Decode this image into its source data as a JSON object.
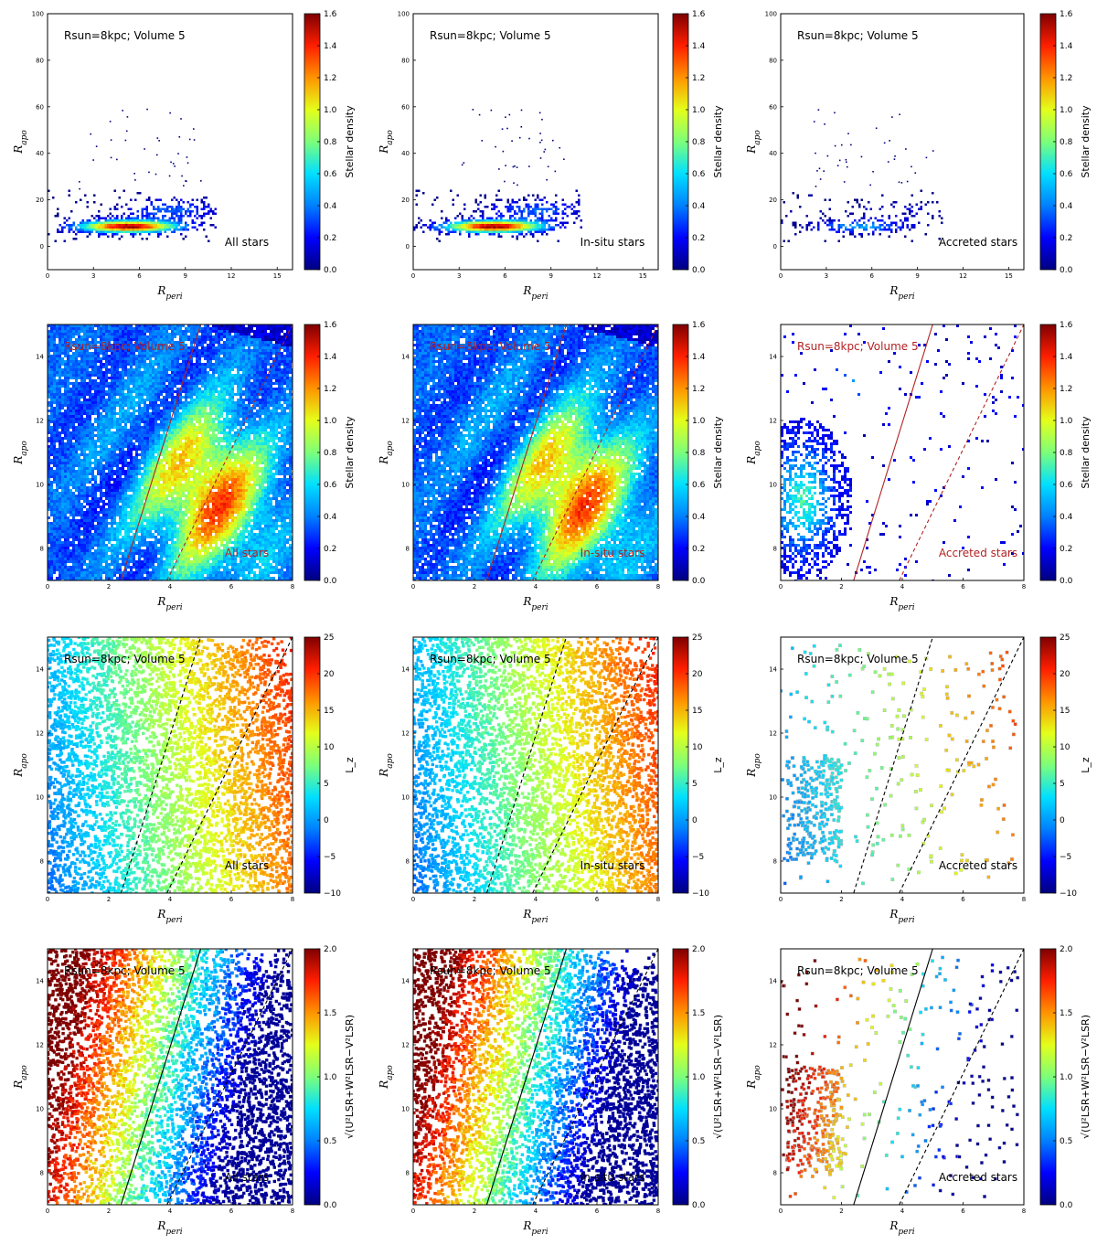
{
  "figure": {
    "columns": [
      "All stars",
      "In-situ stars",
      "Accreted stars"
    ],
    "colormap": [
      "#00007f",
      "#0000ff",
      "#0080ff",
      "#00e0ff",
      "#7dff7a",
      "#e4ff1a",
      "#ff9400",
      "#ff1e00",
      "#7f0000"
    ]
  },
  "chart_data": [
    {
      "type": "heatmap",
      "row": 1,
      "col": 1,
      "title": "Rsun=8kpc; Volume 5",
      "subtitle": "All stars",
      "xlabel": "R_peri",
      "ylabel": "R_apo",
      "xlim": [
        0,
        16
      ],
      "ylim": [
        -10,
        100
      ],
      "xticks": [
        "0",
        "3",
        "6",
        "9",
        "12",
        "15"
      ],
      "yticks": [
        "0",
        "20",
        "40",
        "60",
        "80",
        "100"
      ],
      "colorbar": {
        "label": "Stellar density",
        "range": [
          0,
          1.6
        ],
        "ticks": [
          "0.0",
          "0.2",
          "0.4",
          "0.6",
          "0.8",
          "1.0",
          "1.2",
          "1.4",
          "1.6"
        ]
      },
      "annotation_color": "#000000"
    },
    {
      "type": "heatmap",
      "row": 1,
      "col": 2,
      "title": "Rsun=8kpc; Volume 5",
      "subtitle": "In-situ stars",
      "xlabel": "R_peri",
      "ylabel": "R_apo",
      "xlim": [
        0,
        16
      ],
      "ylim": [
        -10,
        100
      ],
      "xticks": [
        "0",
        "3",
        "6",
        "9",
        "12",
        "15"
      ],
      "yticks": [
        "0",
        "20",
        "40",
        "60",
        "80",
        "100"
      ],
      "colorbar": {
        "label": "Stellar density",
        "range": [
          0,
          1.6
        ],
        "ticks": [
          "0.0",
          "0.2",
          "0.4",
          "0.6",
          "0.8",
          "1.0",
          "1.2",
          "1.4",
          "1.6"
        ]
      },
      "annotation_color": "#000000"
    },
    {
      "type": "heatmap",
      "row": 1,
      "col": 3,
      "title": "Rsun=8kpc; Volume 5",
      "subtitle": "Accreted stars",
      "xlabel": "R_peri",
      "ylabel": "R_apo",
      "xlim": [
        0,
        16
      ],
      "ylim": [
        -10,
        100
      ],
      "xticks": [
        "0",
        "3",
        "6",
        "9",
        "12",
        "15"
      ],
      "yticks": [
        "0",
        "20",
        "40",
        "60",
        "80",
        "100"
      ],
      "colorbar": {
        "label": "Stellar density",
        "range": [
          0,
          1.6
        ],
        "ticks": [
          "0.0",
          "0.2",
          "0.4",
          "0.6",
          "0.8",
          "1.0",
          "1.2",
          "1.4",
          "1.6"
        ]
      },
      "annotation_color": "#000000"
    },
    {
      "type": "heatmap",
      "row": 2,
      "col": 1,
      "title": "Rsun=8kpc; Volume 5",
      "subtitle": "All stars",
      "xlabel": "R_peri",
      "ylabel": "R_apo",
      "xlim": [
        0,
        8
      ],
      "ylim": [
        7,
        15
      ],
      "xticks": [
        "0",
        "2",
        "4",
        "6",
        "8"
      ],
      "yticks": [
        "8",
        "10",
        "12",
        "14"
      ],
      "colorbar": {
        "label": "Stellar density",
        "range": [
          0,
          1.6
        ],
        "ticks": [
          "0.0",
          "0.2",
          "0.4",
          "0.6",
          "0.8",
          "1.0",
          "1.2",
          "1.4",
          "1.6"
        ]
      },
      "lines": [
        {
          "style": "solid",
          "x": [
            2.4,
            5.0
          ],
          "y": [
            7,
            15
          ]
        },
        {
          "style": "dashed",
          "x": [
            3.9,
            8.0
          ],
          "y": [
            7,
            15
          ]
        }
      ],
      "line_color": "#b22222",
      "annotation_color": "#b22222"
    },
    {
      "type": "heatmap",
      "row": 2,
      "col": 2,
      "title": "Rsun=8kpc; Volume 5",
      "subtitle": "In-situ stars",
      "xlabel": "R_peri",
      "ylabel": "R_apo",
      "xlim": [
        0,
        8
      ],
      "ylim": [
        7,
        15
      ],
      "xticks": [
        "0",
        "2",
        "4",
        "6",
        "8"
      ],
      "yticks": [
        "8",
        "10",
        "12",
        "14"
      ],
      "colorbar": {
        "label": "Stellar density",
        "range": [
          0,
          1.6
        ],
        "ticks": [
          "0.0",
          "0.2",
          "0.4",
          "0.6",
          "0.8",
          "1.0",
          "1.2",
          "1.4",
          "1.6"
        ]
      },
      "lines": [
        {
          "style": "solid",
          "x": [
            2.4,
            5.0
          ],
          "y": [
            7,
            15
          ]
        },
        {
          "style": "dashed",
          "x": [
            3.9,
            8.0
          ],
          "y": [
            7,
            15
          ]
        }
      ],
      "line_color": "#b22222",
      "annotation_color": "#b22222"
    },
    {
      "type": "heatmap",
      "row": 2,
      "col": 3,
      "title": "Rsun=8kpc; Volume 5",
      "subtitle": "Accreted stars",
      "xlabel": "R_peri",
      "ylabel": "R_apo",
      "xlim": [
        0,
        8
      ],
      "ylim": [
        7,
        15
      ],
      "xticks": [
        "0",
        "2",
        "4",
        "6",
        "8"
      ],
      "yticks": [
        "8",
        "10",
        "12",
        "14"
      ],
      "colorbar": {
        "label": "Stellar density",
        "range": [
          0,
          1.6
        ],
        "ticks": [
          "0.0",
          "0.2",
          "0.4",
          "0.6",
          "0.8",
          "1.0",
          "1.2",
          "1.4",
          "1.6"
        ]
      },
      "lines": [
        {
          "style": "solid",
          "x": [
            2.4,
            5.0
          ],
          "y": [
            7,
            15
          ]
        },
        {
          "style": "dashed",
          "x": [
            3.9,
            8.0
          ],
          "y": [
            7,
            15
          ]
        }
      ],
      "line_color": "#b22222",
      "annotation_color": "#b22222"
    },
    {
      "type": "scatter",
      "row": 3,
      "col": 1,
      "title": "Rsun=8kpc; Volume 5",
      "subtitle": "All stars",
      "xlabel": "R_peri",
      "ylabel": "R_apo",
      "xlim": [
        0,
        8
      ],
      "ylim": [
        7,
        15
      ],
      "xticks": [
        "0",
        "2",
        "4",
        "6",
        "8"
      ],
      "yticks": [
        "8",
        "10",
        "12",
        "14"
      ],
      "colorbar": {
        "label": "L_z",
        "range": [
          -10,
          25
        ],
        "ticks": [
          "−10",
          "−5",
          "0",
          "5",
          "10",
          "15",
          "20",
          "25"
        ]
      },
      "lines": [
        {
          "style": "dashed",
          "x": [
            2.4,
            5.0
          ],
          "y": [
            7,
            15
          ]
        },
        {
          "style": "dashed",
          "x": [
            3.9,
            8.0
          ],
          "y": [
            7,
            15
          ]
        }
      ],
      "line_color": "#000000",
      "annotation_color": "#000000"
    },
    {
      "type": "scatter",
      "row": 3,
      "col": 2,
      "title": "Rsun=8kpc; Volume 5",
      "subtitle": "In-situ stars",
      "xlabel": "R_peri",
      "ylabel": "R_apo",
      "xlim": [
        0,
        8
      ],
      "ylim": [
        7,
        15
      ],
      "xticks": [
        "0",
        "2",
        "4",
        "6",
        "8"
      ],
      "yticks": [
        "8",
        "10",
        "12",
        "14"
      ],
      "colorbar": {
        "label": "L_z",
        "range": [
          -10,
          25
        ],
        "ticks": [
          "−10",
          "−5",
          "0",
          "5",
          "10",
          "15",
          "20",
          "25"
        ]
      },
      "lines": [
        {
          "style": "dashed",
          "x": [
            2.4,
            5.0
          ],
          "y": [
            7,
            15
          ]
        },
        {
          "style": "dashed",
          "x": [
            3.9,
            8.0
          ],
          "y": [
            7,
            15
          ]
        }
      ],
      "line_color": "#000000",
      "annotation_color": "#000000"
    },
    {
      "type": "scatter",
      "row": 3,
      "col": 3,
      "title": "Rsun=8kpc; Volume 5",
      "subtitle": "Accreted stars",
      "xlabel": "R_peri",
      "ylabel": "R_apo",
      "xlim": [
        0,
        8
      ],
      "ylim": [
        7,
        15
      ],
      "xticks": [
        "0",
        "2",
        "4",
        "6",
        "8"
      ],
      "yticks": [
        "8",
        "10",
        "12",
        "14"
      ],
      "colorbar": {
        "label": "L_z",
        "range": [
          -10,
          25
        ],
        "ticks": [
          "−10",
          "−5",
          "0",
          "5",
          "10",
          "15",
          "20",
          "25"
        ]
      },
      "lines": [
        {
          "style": "dashed",
          "x": [
            2.4,
            5.0
          ],
          "y": [
            7,
            15
          ]
        },
        {
          "style": "dashed",
          "x": [
            3.9,
            8.0
          ],
          "y": [
            7,
            15
          ]
        }
      ],
      "line_color": "#000000",
      "annotation_color": "#000000"
    },
    {
      "type": "scatter",
      "row": 4,
      "col": 1,
      "title": "Rsun=8kpc; Volume 5",
      "subtitle": "All stars",
      "xlabel": "R_peri",
      "ylabel": "R_apo",
      "xlim": [
        0,
        8
      ],
      "ylim": [
        7,
        15
      ],
      "xticks": [
        "0",
        "2",
        "4",
        "6",
        "8"
      ],
      "yticks": [
        "8",
        "10",
        "12",
        "14"
      ],
      "colorbar": {
        "label": "√(U²LSR+W²LSR−V²LSR)",
        "range": [
          0,
          2
        ],
        "ticks": [
          "0.0",
          "0.5",
          "1.0",
          "1.5",
          "2.0"
        ]
      },
      "lines": [
        {
          "style": "solid",
          "x": [
            2.4,
            5.0
          ],
          "y": [
            7,
            15
          ]
        },
        {
          "style": "dashed",
          "x": [
            3.9,
            8.0
          ],
          "y": [
            7,
            15
          ]
        }
      ],
      "line_color": "#000000",
      "annotation_color": "#000000"
    },
    {
      "type": "scatter",
      "row": 4,
      "col": 2,
      "title": "Rsun=8kpc; Volume 5",
      "subtitle": "In-situ stars",
      "xlabel": "R_peri",
      "ylabel": "R_apo",
      "xlim": [
        0,
        8
      ],
      "ylim": [
        7,
        15
      ],
      "xticks": [
        "0",
        "2",
        "4",
        "6",
        "8"
      ],
      "yticks": [
        "8",
        "10",
        "12",
        "14"
      ],
      "colorbar": {
        "label": "√(U²LSR+W²LSR−V²LSR)",
        "range": [
          0,
          2
        ],
        "ticks": [
          "0.0",
          "0.5",
          "1.0",
          "1.5",
          "2.0"
        ]
      },
      "lines": [
        {
          "style": "solid",
          "x": [
            2.4,
            5.0
          ],
          "y": [
            7,
            15
          ]
        },
        {
          "style": "dashed",
          "x": [
            3.9,
            8.0
          ],
          "y": [
            7,
            15
          ]
        }
      ],
      "line_color": "#000000",
      "annotation_color": "#000000"
    },
    {
      "type": "scatter",
      "row": 4,
      "col": 3,
      "title": "Rsun=8kpc; Volume 5",
      "subtitle": "Accreted stars",
      "xlabel": "R_peri",
      "ylabel": "R_apo",
      "xlim": [
        0,
        8
      ],
      "ylim": [
        7,
        15
      ],
      "xticks": [
        "0",
        "2",
        "4",
        "6",
        "8"
      ],
      "yticks": [
        "8",
        "10",
        "12",
        "14"
      ],
      "colorbar": {
        "label": "√(U²LSR+W²LSR−V²LSR)",
        "range": [
          0,
          2
        ],
        "ticks": [
          "0.0",
          "0.5",
          "1.0",
          "1.5",
          "2.0"
        ]
      },
      "lines": [
        {
          "style": "solid",
          "x": [
            2.4,
            5.0
          ],
          "y": [
            7,
            15
          ]
        },
        {
          "style": "dashed",
          "x": [
            3.9,
            8.0
          ],
          "y": [
            7,
            15
          ]
        }
      ],
      "line_color": "#000000",
      "annotation_color": "#000000"
    }
  ]
}
